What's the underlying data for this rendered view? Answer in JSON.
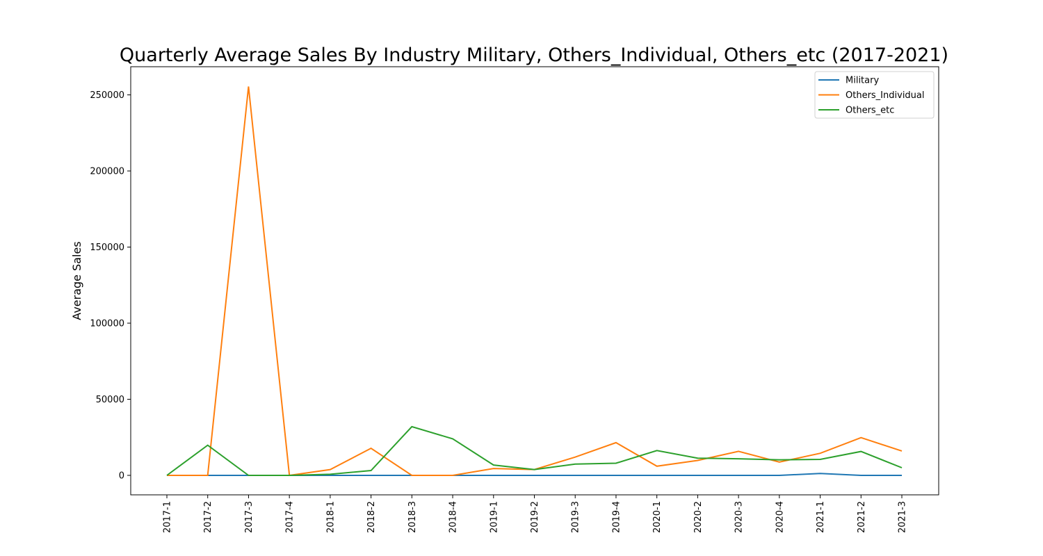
{
  "chart_data": {
    "type": "line",
    "title": "Quarterly Average Sales By Industry Military, Others_Individual, Others_etc (2017-2021)",
    "xlabel": "",
    "ylabel": "Average Sales",
    "categories": [
      "2017-1",
      "2017-2",
      "2017-3",
      "2017-4",
      "2018-1",
      "2018-2",
      "2018-3",
      "2018-4",
      "2019-1",
      "2019-2",
      "2019-3",
      "2019-4",
      "2020-1",
      "2020-2",
      "2020-3",
      "2020-4",
      "2021-1",
      "2021-2",
      "2021-3"
    ],
    "yticks": [
      0,
      50000,
      100000,
      150000,
      200000,
      250000
    ],
    "ylim": [
      -12800,
      268500
    ],
    "grid": false,
    "legend_position": "top-right",
    "series": [
      {
        "name": "Military",
        "color": "#1f77b4",
        "values": [
          0,
          0,
          0,
          0,
          0,
          0,
          0,
          0,
          0,
          0,
          0,
          0,
          0,
          0,
          0,
          0,
          1200,
          0,
          0
        ]
      },
      {
        "name": "Others_Individual",
        "color": "#ff7f0e",
        "values": [
          0,
          0,
          255500,
          0,
          3800,
          17800,
          0,
          0,
          4500,
          3800,
          12000,
          21500,
          6000,
          9800,
          15800,
          8700,
          14500,
          24800,
          16000
        ]
      },
      {
        "name": "Others_etc",
        "color": "#2ca02c",
        "values": [
          0,
          19800,
          0,
          0,
          700,
          3200,
          32000,
          24000,
          6800,
          3800,
          7400,
          8000,
          16300,
          11300,
          10900,
          10200,
          10500,
          15700,
          5000
        ]
      }
    ]
  }
}
